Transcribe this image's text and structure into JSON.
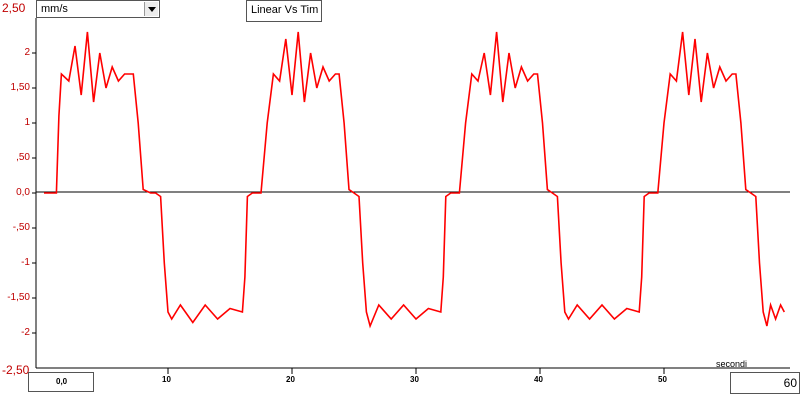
{
  "controls": {
    "unit_select": "mm/s",
    "title_box": "Linear Vs Tim",
    "y_max_label": "2,50",
    "y_min_label": "-2,50",
    "x_min_box": "0,0",
    "x_max_box": "60"
  },
  "chart_data": {
    "type": "line",
    "title": "Linear Vs Tim",
    "xlabel": "secondi",
    "ylabel": "mm/s",
    "xlim": [
      0,
      60
    ],
    "ylim": [
      -2.5,
      2.5
    ],
    "grid": false,
    "y_tick_values": [
      2,
      1.5,
      1,
      0.5,
      0,
      -0.5,
      -1,
      -1.5,
      -2
    ],
    "y_tick_labels": [
      "2",
      "1,50",
      "1",
      ",50",
      "0,0",
      "-,50",
      "-1",
      "-1,50",
      "-2"
    ],
    "x_tick_values": [
      10,
      20,
      30,
      40,
      50
    ],
    "x_tick_labels": [
      "10",
      "20",
      "30",
      "40",
      "50"
    ],
    "series": [
      {
        "color": "#ff0000",
        "x": [
          0.0,
          0.5,
          1.0,
          1.2,
          1.4,
          2.0,
          2.5,
          3.0,
          3.5,
          4.0,
          4.5,
          5.0,
          5.5,
          6.0,
          6.5,
          7.2,
          7.6,
          8.0,
          8.6,
          9.0,
          9.4,
          9.7,
          10.0,
          10.3,
          11.0,
          12.0,
          13.0,
          14.0,
          15.0,
          16.0,
          16.2,
          16.4,
          16.8,
          17.2,
          17.5,
          18.0,
          18.5,
          19.0,
          19.5,
          20.0,
          20.5,
          21.0,
          21.5,
          22.0,
          22.5,
          23.0,
          23.5,
          23.8,
          24.2,
          24.6,
          25.0,
          25.4,
          25.7,
          26.0,
          26.3,
          27.0,
          28.0,
          29.0,
          30.0,
          31.0,
          32.0,
          32.2,
          32.4,
          32.8,
          33.2,
          33.5,
          34.0,
          34.5,
          35.0,
          35.5,
          36.0,
          36.5,
          37.0,
          37.5,
          38.0,
          38.5,
          39.0,
          39.5,
          39.8,
          40.2,
          40.6,
          41.0,
          41.4,
          41.7,
          42.0,
          42.3,
          43.0,
          44.0,
          45.0,
          46.0,
          47.0,
          48.0,
          48.2,
          48.4,
          48.8,
          49.2,
          49.5,
          50.0,
          50.5,
          51.0,
          51.5,
          52.0,
          52.5,
          53.0,
          53.5,
          54.0,
          54.5,
          55.0,
          55.5,
          55.8,
          56.2,
          56.6,
          57.0,
          57.4,
          57.7,
          58.0,
          58.3,
          58.6,
          59.0,
          59.4,
          59.7
        ],
        "values": [
          0.0,
          0.0,
          0.0,
          1.1,
          1.7,
          1.6,
          2.1,
          1.4,
          2.3,
          1.3,
          2.0,
          1.5,
          1.8,
          1.6,
          1.7,
          1.7,
          1.0,
          0.05,
          0.0,
          0.0,
          -0.05,
          -1.0,
          -1.7,
          -1.8,
          -1.6,
          -1.85,
          -1.6,
          -1.8,
          -1.65,
          -1.7,
          -1.2,
          -0.05,
          0.0,
          0.0,
          0.0,
          1.0,
          1.7,
          1.6,
          2.2,
          1.4,
          2.3,
          1.3,
          2.0,
          1.5,
          1.8,
          1.6,
          1.7,
          1.7,
          1.0,
          0.05,
          0.0,
          -0.05,
          -1.0,
          -1.7,
          -1.9,
          -1.6,
          -1.8,
          -1.6,
          -1.8,
          -1.65,
          -1.7,
          -1.2,
          -0.05,
          0.0,
          0.0,
          0.0,
          1.0,
          1.7,
          1.6,
          2.0,
          1.4,
          2.3,
          1.3,
          2.0,
          1.5,
          1.8,
          1.6,
          1.7,
          1.7,
          1.0,
          0.05,
          0.0,
          -0.05,
          -1.0,
          -1.7,
          -1.8,
          -1.6,
          -1.8,
          -1.6,
          -1.8,
          -1.65,
          -1.7,
          -1.2,
          -0.05,
          0.0,
          0.0,
          0.0,
          1.0,
          1.7,
          1.6,
          2.3,
          1.4,
          2.2,
          1.3,
          2.0,
          1.5,
          1.8,
          1.6,
          1.7,
          1.7,
          1.0,
          0.05,
          0.0,
          -0.05,
          -1.0,
          -1.7,
          -1.9,
          -1.6,
          -1.8,
          -1.6,
          -1.7
        ]
      }
    ]
  }
}
